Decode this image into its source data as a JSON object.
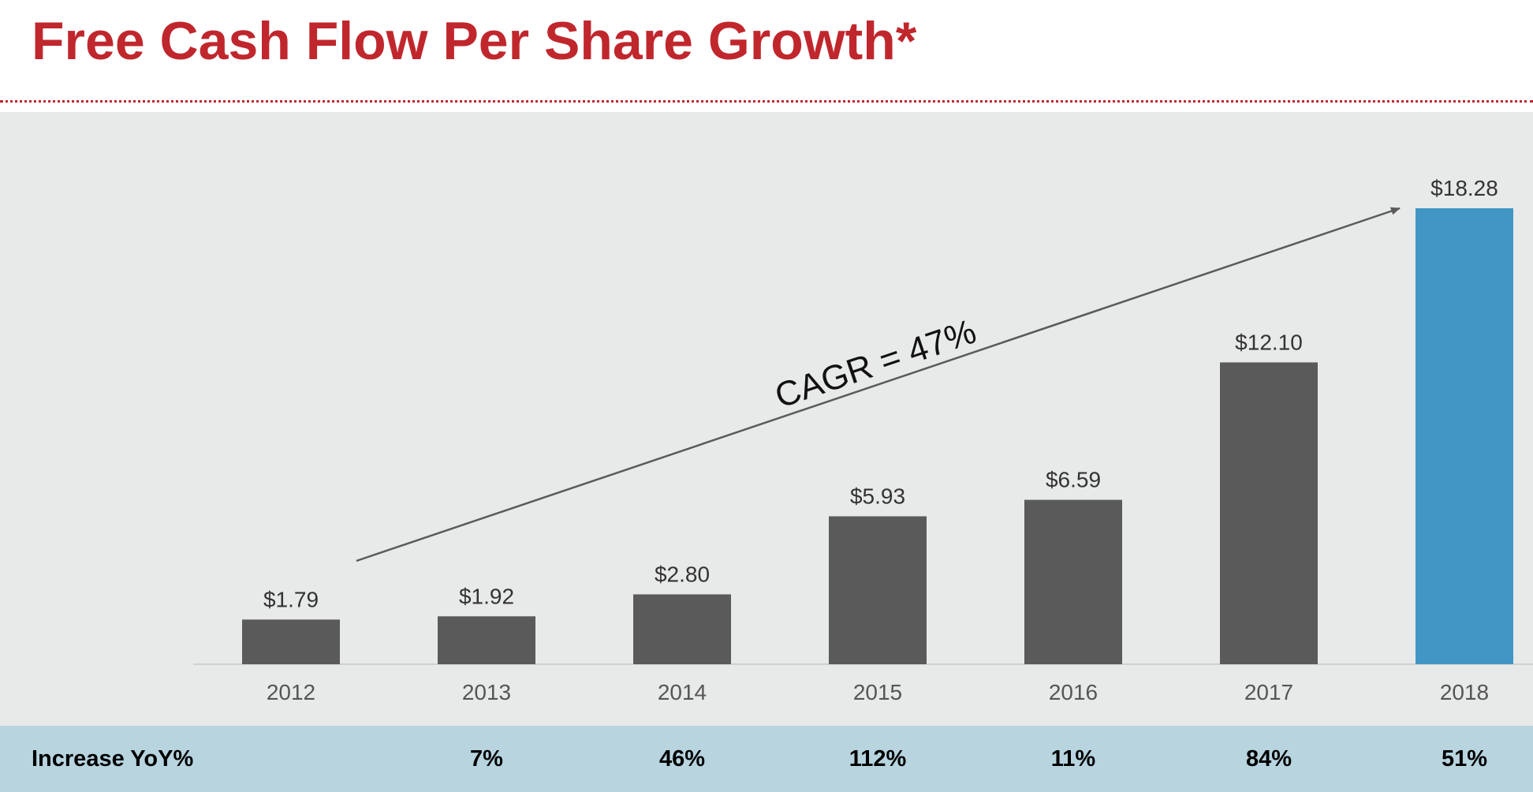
{
  "title": "Free Cash Flow Per Share Growth*",
  "colors": {
    "title": "#c0272d",
    "bar_default": "#5a5a5a",
    "bar_highlight": "#4196c4",
    "panel_bg": "#e8e9e9",
    "band_bg": "#b7d4df"
  },
  "chart_data": {
    "type": "bar",
    "title": "Free Cash Flow Per Share Growth*",
    "xlabel": "",
    "ylabel": "",
    "ylim": [
      0,
      18.28
    ],
    "grid": false,
    "categories": [
      "2012",
      "2013",
      "2014",
      "2015",
      "2016",
      "2017",
      "2018"
    ],
    "values": [
      1.79,
      1.92,
      2.8,
      5.93,
      6.59,
      12.1,
      18.28
    ],
    "value_labels": [
      "$1.79",
      "$1.92",
      "$2.80",
      "$5.93",
      "$6.59",
      "$12.10",
      "$18.28"
    ],
    "highlight_category": "2018",
    "annotation": {
      "text": "CAGR = 47%",
      "arrow_from_category": "2012",
      "arrow_to_category": "2018"
    }
  },
  "yoy": {
    "label": "Increase YoY%",
    "values": [
      "",
      "7%",
      "46%",
      "112%",
      "11%",
      "84%",
      "51%"
    ]
  }
}
